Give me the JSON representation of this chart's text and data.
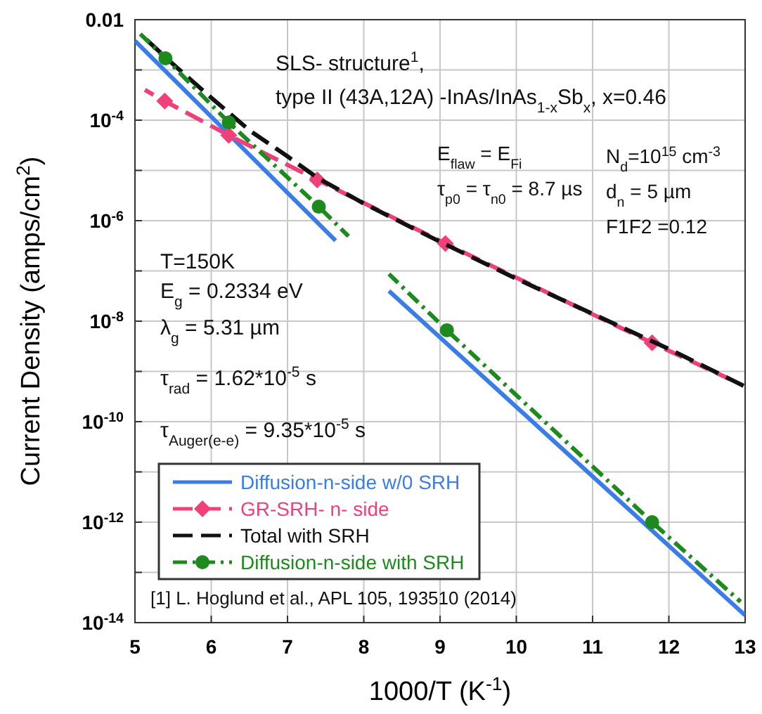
{
  "chart_data": {
    "type": "line",
    "xlabel": "1000/T (K$^{-1}$)",
    "ylabel": "Current Density (amps/cm$^{2}$)",
    "xlim": [
      5,
      13
    ],
    "xticks": [
      5,
      6,
      7,
      8,
      9,
      10,
      11,
      12,
      13
    ],
    "ylim": [
      1e-14,
      0.01
    ],
    "log": "y",
    "yticks": [
      {
        "value": 0.01,
        "label": "0.01"
      },
      {
        "value": 0.001,
        "label": null
      },
      {
        "value": 0.0001,
        "label": "10$^{-4}$"
      },
      {
        "value": 1e-05,
        "label": null
      },
      {
        "value": 1e-06,
        "label": "10$^{-6}$"
      },
      {
        "value": 1e-07,
        "label": null
      },
      {
        "value": 1e-08,
        "label": "10$^{-8}$"
      },
      {
        "value": 1e-09,
        "label": null
      },
      {
        "value": 1e-10,
        "label": "10$^{-10}$"
      },
      {
        "value": 1e-11,
        "label": null
      },
      {
        "value": 1e-12,
        "label": "10$^{-12}$"
      },
      {
        "value": 1e-13,
        "label": null
      },
      {
        "value": 1e-14,
        "label": "10$^{-14}$"
      }
    ],
    "grid": true,
    "legend": "bottom left",
    "series": [
      {
        "name": "Diffusion-n-side w/0 SRH",
        "color": "#3a7de8",
        "line_style": "solid",
        "marker": "none",
        "x": [
          5,
          7.63,
          8,
          8.33,
          13
        ],
        "values": [
          0.0038,
          4e-07,
          null,
          4e-08,
          1.4e-14
        ]
      },
      {
        "name": "GR-SRH- n- side",
        "color": "#f0407a",
        "line_style": "dashed",
        "marker": "diamond",
        "x": [
          5.13,
          5.39,
          6.23,
          7.39,
          9.07,
          11.78,
          12.8
        ],
        "values": [
          0.0004,
          0.00024,
          5e-05,
          6.5e-06,
          3.5e-07,
          3.7e-09,
          7e-10
        ]
      },
      {
        "name": "Total with SRH",
        "color": "#111111",
        "line_style": "dashed",
        "marker": "none",
        "x": [
          5.07,
          5.5,
          6,
          6.5,
          7,
          7.4,
          8,
          9,
          10,
          11,
          12,
          13
        ],
        "values": [
          0.0052,
          0.0013,
          0.00028,
          6.3e-05,
          1.9e-05,
          7e-06,
          2.2e-06,
          3.8e-07,
          7e-08,
          1.4e-08,
          2.8e-09,
          5e-10
        ]
      },
      {
        "name": "Diffusion-n-side with SRH",
        "color": "#1e8a1e",
        "line_style": "dashdot",
        "marker": "circle",
        "x": [
          5.07,
          5.4,
          6.23,
          7.41,
          7.8,
          8.1,
          8.33,
          9.09,
          11.78,
          12.94
        ],
        "values": [
          0.0052,
          0.0017,
          9e-05,
          1.9e-06,
          4.9e-07,
          null,
          8.7e-08,
          6.6e-09,
          1e-12,
          2.6e-14
        ]
      }
    ],
    "annotations": [
      "SLS- structure$^{1}$,",
      "type II (43A,12A) -InAs/InAs$_{1-x}$Sb$_{x}$, x=0.46",
      "E$_{flaw}$ = E$_{Fi}$",
      "τ$_{p0}$ = τ$_{n0}$ = 8.7 µs",
      "N$_{d}$=10$^{15}$ cm$^{-3}$",
      "d$_{n}$ = 5 µm",
      "F1F2 =0.12",
      "T=150K",
      "E$_{g}$ = 0.2334 eV",
      "λ$_{g}$ = 5.31 µm",
      "τ$_{rad}$ = 1.62*10$^{-5}$ s",
      "τ$_{Auger(e-e)}$ = 9.35*10$^{-5}$ s",
      "[1] L. Hoglund et al., APL 105, 193510 (2014)"
    ]
  }
}
